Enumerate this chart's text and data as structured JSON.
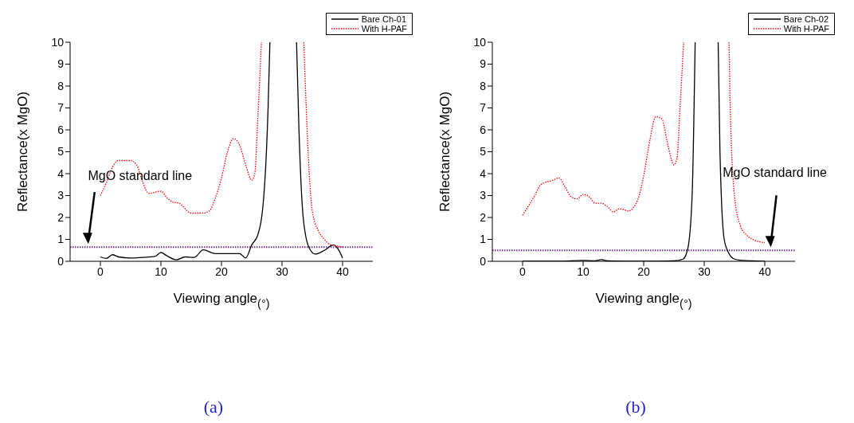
{
  "chart_data": [
    {
      "type": "line",
      "xlabel": "Viewing angle$_{(°)}$",
      "ylabel": "Reflectance(x MgO)",
      "xlim": [
        -5,
        45
      ],
      "xticks": [
        0,
        10,
        20,
        30,
        40
      ],
      "ylim": [
        0,
        10
      ],
      "yticks": [
        0,
        1,
        2,
        3,
        4,
        5,
        6,
        7,
        8,
        9,
        10
      ],
      "legend": "top right",
      "marker": "none",
      "series": [
        {
          "name": "Bare Ch-01",
          "color": "#000000",
          "line_style": "solid",
          "x": [
            0,
            1,
            2,
            3,
            5,
            7,
            9,
            10,
            11,
            12.5,
            14,
            15.5,
            17,
            19,
            21,
            23,
            24,
            25,
            26,
            27,
            27.7,
            28,
            30,
            32.4,
            32.8,
            33.5,
            34.5,
            35.5,
            37,
            38.5,
            39.5,
            40
          ],
          "values": [
            0.2,
            0.13,
            0.3,
            0.2,
            0.15,
            0.18,
            0.22,
            0.4,
            0.25,
            0.07,
            0.2,
            0.18,
            0.52,
            0.35,
            0.35,
            0.35,
            0.15,
            0.75,
            1.2,
            3,
            7,
            10,
            null,
            10,
            6,
            2,
            0.6,
            0.33,
            0.5,
            0.75,
            0.45,
            0.15
          ]
        },
        {
          "name": "With H-PAF",
          "color": "#ff0000",
          "line_style": "dotted",
          "x": [
            0,
            1,
            2,
            3,
            5,
            6,
            7,
            8,
            10,
            11,
            12,
            13,
            15,
            17,
            18,
            19,
            20,
            21,
            22,
            23,
            24,
            25,
            25.5,
            26,
            26.6,
            30,
            33.6,
            34,
            34.5,
            35,
            36,
            37,
            38,
            39,
            40
          ],
          "values": [
            3,
            3.6,
            4.3,
            4.6,
            4.6,
            4.4,
            3.6,
            3.1,
            3.2,
            2.9,
            2.7,
            2.65,
            2.2,
            2.2,
            2.3,
            2.9,
            3.8,
            5.0,
            5.6,
            5.3,
            4.4,
            3.7,
            4.0,
            6.5,
            10,
            null,
            10,
            7,
            4,
            2.3,
            1.4,
            1.0,
            0.75,
            0.7,
            0.65
          ]
        }
      ],
      "ref_lines": [
        {
          "axis": "y",
          "value": 0.65,
          "color": "#7030a0",
          "line_style": "dotted"
        }
      ],
      "annotations": [
        {
          "text": "MgO standard line",
          "x": -2,
          "y": 0.65
        },
        "(a)"
      ]
    },
    {
      "type": "line",
      "xlabel": "Viewing angle$_{(°)}$",
      "ylabel": "Reflectance(x MgO)",
      "xlim": [
        -5,
        45
      ],
      "xticks": [
        0,
        10,
        20,
        30,
        40
      ],
      "ylim": [
        0,
        10
      ],
      "yticks": [
        0,
        1,
        2,
        3,
        4,
        5,
        6,
        7,
        8,
        9,
        10
      ],
      "legend": "top right",
      "marker": "none",
      "series": [
        {
          "name": "Bare Ch-02",
          "color": "#000000",
          "line_style": "solid",
          "x": [
            0,
            6,
            10,
            12,
            13,
            14,
            20,
            25,
            26.5,
            27.3,
            28,
            28.5,
            30,
            32.3,
            32.6,
            33.3,
            34,
            35,
            36,
            38,
            40
          ],
          "values": [
            0,
            0,
            0.04,
            0.02,
            0.08,
            0.02,
            0,
            0.02,
            0.1,
            0.6,
            3,
            10,
            null,
            10,
            5,
            1,
            0.4,
            0.1,
            0.05,
            0.02,
            0
          ]
        },
        {
          "name": "With H-PAF",
          "color": "#ff0000",
          "line_style": "dotted",
          "x": [
            0,
            2,
            3,
            5,
            6,
            7,
            8,
            9,
            10,
            11,
            12,
            13,
            14,
            15,
            16,
            17.5,
            19,
            20,
            21,
            22,
            23,
            24,
            25,
            25.5,
            26,
            26.6,
            30,
            34.1,
            34.3,
            35,
            36,
            37,
            38,
            39,
            40
          ],
          "values": [
            2.1,
            3.0,
            3.5,
            3.7,
            3.8,
            3.4,
            2.95,
            2.85,
            3.05,
            2.95,
            2.65,
            2.65,
            2.5,
            2.25,
            2.4,
            2.3,
            2.8,
            3.9,
            5.5,
            6.6,
            6.5,
            5.3,
            4.4,
            4.7,
            7,
            10,
            null,
            10,
            7,
            3,
            1.6,
            1.2,
            1.0,
            0.9,
            0.85
          ]
        }
      ],
      "ref_lines": [
        {
          "axis": "y",
          "value": 0.5,
          "color": "#7030a0",
          "line_style": "dotted"
        }
      ],
      "annotations": [
        {
          "text": "MgO standard line",
          "x": 41,
          "y": 0.5
        },
        "(b)"
      ]
    }
  ]
}
